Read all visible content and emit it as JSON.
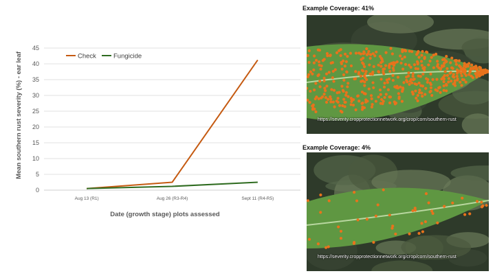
{
  "chart_data": {
    "type": "line",
    "categories": [
      "Aug 13 (R1)",
      "Aug 26 (R3-R4)",
      "Sept 11 (R4-R5)"
    ],
    "series": [
      {
        "name": "Check",
        "values": [
          0.5,
          2.5,
          41.2
        ],
        "color": "#c55a11"
      },
      {
        "name": "Fungicide",
        "values": [
          0.5,
          1.2,
          2.5
        ],
        "color": "#2e6b1f"
      }
    ],
    "xlabel": "Date (growth stage) plots assessed",
    "ylabel": "Mean southern rust severity (%) - ear leaf",
    "ylim": [
      0,
      45
    ],
    "yticks": [
      "0",
      "5",
      "10",
      "15",
      "20",
      "25",
      "30",
      "35",
      "40",
      "45"
    ],
    "grid": true,
    "legend_position": "top-left"
  },
  "examples": [
    {
      "title": "Example Coverage: 41%",
      "url": "https://severity.cropprotectionnetwork.org/crop/corn/southern-rust",
      "coverage": 0.41
    },
    {
      "title": "Example Coverage: 4%",
      "url": "https://severity.cropprotectionnetwork.org/crop/corn/southern-rust",
      "coverage": 0.04
    }
  ],
  "colors": {
    "rust": "#e8731c",
    "leaf": "#5f9742",
    "background": "#2e3a2a"
  }
}
